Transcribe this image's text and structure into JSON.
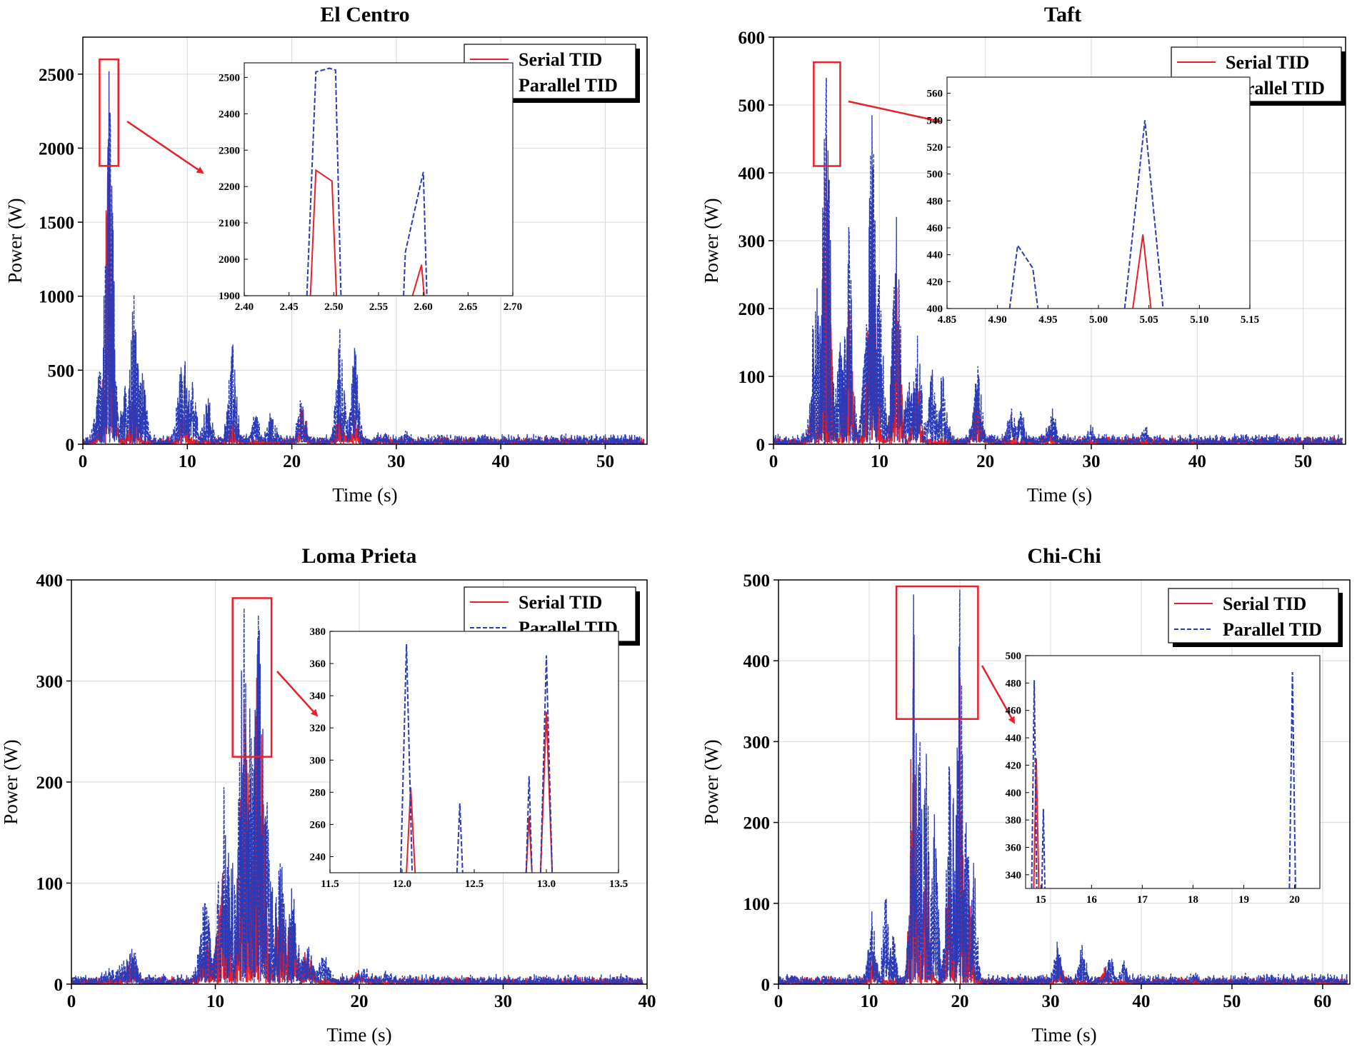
{
  "legend": {
    "serial": "Serial TID",
    "parallel": "Parallel TID"
  },
  "colors": {
    "serial": "#e8202a",
    "parallel": "#2b3bb8",
    "highlight": "#e8202a"
  },
  "chart_data": [
    {
      "type": "line",
      "title": "El Centro",
      "xlabel": "Time (s)",
      "ylabel": "Power (W)",
      "xlim": [
        0,
        54
      ],
      "ylim": [
        0,
        2750
      ],
      "xticks": [
        0,
        10,
        20,
        30,
        40,
        50
      ],
      "yticks": [
        0,
        500,
        1000,
        1500,
        2000,
        2500
      ],
      "grid": true,
      "legend_position": "top-right",
      "series": [
        {
          "name": "Serial TID",
          "style": "solid",
          "peaks": [
            [
              1.6,
              120
            ],
            [
              2.5,
              2240
            ],
            [
              4.9,
              300
            ],
            [
              9.6,
              200
            ],
            [
              14.3,
              160
            ],
            [
              21.0,
              230
            ],
            [
              24.6,
              200
            ],
            [
              26.0,
              180
            ],
            [
              29,
              20
            ]
          ]
        },
        {
          "name": "Parallel TID",
          "style": "dashed",
          "peaks": [
            [
              1.6,
              490
            ],
            [
              2.5,
              2520
            ],
            [
              2.6,
              2240
            ],
            [
              4.0,
              380
            ],
            [
              4.9,
              1010
            ],
            [
              5.7,
              480
            ],
            [
              9.4,
              520
            ],
            [
              9.8,
              560
            ],
            [
              10.5,
              420
            ],
            [
              12.0,
              310
            ],
            [
              14.3,
              660
            ],
            [
              16.5,
              180
            ],
            [
              18,
              180
            ],
            [
              20.9,
              280
            ],
            [
              24.6,
              780
            ],
            [
              26.0,
              650
            ],
            [
              28.5,
              60
            ],
            [
              31,
              30
            ]
          ]
        }
      ],
      "zoom_box": {
        "x": [
          1.6,
          3.4
        ],
        "y": [
          1880,
          2600
        ]
      },
      "inset": {
        "xlim": [
          2.4,
          2.7
        ],
        "ylim": [
          1900,
          2540
        ],
        "xticks": [
          2.4,
          2.45,
          2.5,
          2.55,
          2.6,
          2.65,
          2.7
        ],
        "yticks": [
          1900,
          2000,
          2100,
          2200,
          2300,
          2400,
          2500
        ],
        "tick_decimals": 2,
        "serial": [
          [
            2.474,
            1900
          ],
          [
            2.48,
            2245
          ],
          [
            2.498,
            2215
          ],
          [
            2.503,
            1900
          ],
          null,
          [
            2.588,
            1900
          ],
          [
            2.598,
            1985
          ],
          [
            2.601,
            1900
          ]
        ],
        "parallel": [
          [
            2.47,
            1900
          ],
          [
            2.48,
            2515
          ],
          [
            2.495,
            2525
          ],
          [
            2.502,
            2520
          ],
          [
            2.508,
            1900
          ],
          null,
          [
            2.578,
            1900
          ],
          [
            2.58,
            2020
          ],
          [
            2.59,
            2130
          ],
          [
            2.6,
            2240
          ],
          [
            2.604,
            1900
          ]
        ]
      }
    },
    {
      "type": "line",
      "title": "Taft",
      "xlabel": "Time (s)",
      "ylabel": "Power (W)",
      "xlim": [
        0,
        54
      ],
      "ylim": [
        0,
        600
      ],
      "xticks": [
        0,
        10,
        20,
        30,
        40,
        50
      ],
      "yticks": [
        0,
        100,
        200,
        300,
        400,
        500,
        600
      ],
      "grid": true,
      "legend_position": "top-right",
      "series": [
        {
          "name": "Serial TID",
          "style": "solid",
          "peaks": [
            [
              3.8,
              60
            ],
            [
              5.0,
              455
            ],
            [
              7.1,
              200
            ],
            [
              9.3,
              350
            ],
            [
              11.6,
              250
            ],
            [
              13.5,
              90
            ],
            [
              19.3,
              60
            ],
            [
              26,
              20
            ]
          ]
        },
        {
          "name": "Parallel TID",
          "style": "dashed",
          "peaks": [
            [
              3.7,
              175
            ],
            [
              4.1,
              230
            ],
            [
              4.8,
              450
            ],
            [
              5.0,
              540
            ],
            [
              6.3,
              150
            ],
            [
              7.1,
              320
            ],
            [
              8.8,
              175
            ],
            [
              9.3,
              485
            ],
            [
              10.0,
              250
            ],
            [
              11.6,
              335
            ],
            [
              12.8,
              90
            ],
            [
              13.6,
              160
            ],
            [
              15,
              110
            ],
            [
              16,
              100
            ],
            [
              19.3,
              115
            ],
            [
              22.5,
              50
            ],
            [
              23.4,
              45
            ],
            [
              26.3,
              40
            ],
            [
              30,
              20
            ],
            [
              35,
              15
            ]
          ]
        }
      ],
      "zoom_box": {
        "x": [
          3.8,
          6.3
        ],
        "y": [
          410,
          563
        ]
      },
      "inset": {
        "xlim": [
          4.85,
          5.15
        ],
        "ylim": [
          400,
          572
        ],
        "xticks": [
          4.85,
          4.9,
          4.95,
          5.0,
          5.05,
          5.1,
          5.15
        ],
        "yticks": [
          400,
          420,
          440,
          460,
          480,
          500,
          520,
          540,
          560
        ],
        "tick_decimals": 2,
        "serial": [
          [
            5.034,
            400
          ],
          [
            5.044,
            455
          ],
          [
            5.052,
            400
          ]
        ],
        "parallel": [
          [
            4.912,
            400
          ],
          [
            4.92,
            447
          ],
          [
            4.935,
            430
          ],
          [
            4.94,
            400
          ],
          null,
          [
            5.026,
            400
          ],
          [
            5.046,
            540
          ],
          [
            5.064,
            400
          ]
        ]
      }
    },
    {
      "type": "line",
      "title": "Loma Prieta",
      "xlabel": "Time (s)",
      "ylabel": "Power (W)",
      "xlim": [
        0,
        40
      ],
      "ylim": [
        0,
        400
      ],
      "xticks": [
        0,
        10,
        20,
        30,
        40
      ],
      "yticks": [
        0,
        100,
        200,
        300,
        400
      ],
      "grid": true,
      "legend_position": "top-right",
      "series": [
        {
          "name": "Serial TID",
          "style": "solid",
          "peaks": [
            [
              4.2,
              25
            ],
            [
              9.4,
              40
            ],
            [
              10.5,
              110
            ],
            [
              12.0,
              280
            ],
            [
              13.0,
              330
            ],
            [
              14.5,
              80
            ],
            [
              15.3,
              60
            ],
            [
              16.4,
              30
            ],
            [
              20,
              10
            ]
          ]
        },
        {
          "name": "Parallel TID",
          "style": "dashed",
          "peaks": [
            [
              2.6,
              10
            ],
            [
              3.5,
              20
            ],
            [
              4.2,
              35
            ],
            [
              9.3,
              80
            ],
            [
              10.6,
              195
            ],
            [
              11.2,
              120
            ],
            [
              12.0,
              372
            ],
            [
              12.4,
              273
            ],
            [
              13.0,
              365
            ],
            [
              13.6,
              180
            ],
            [
              14.5,
              120
            ],
            [
              15.3,
              95
            ],
            [
              16.4,
              35
            ],
            [
              17.5,
              25
            ],
            [
              20.3,
              15
            ],
            [
              22,
              8
            ]
          ]
        }
      ],
      "zoom_box": {
        "x": [
          11.2,
          13.9
        ],
        "y": [
          225,
          382
        ]
      },
      "inset": {
        "xlim": [
          11.5,
          13.5
        ],
        "ylim": [
          230,
          380
        ],
        "xticks": [
          11.5,
          12.0,
          12.5,
          13.0,
          13.5
        ],
        "yticks": [
          240,
          260,
          280,
          300,
          320,
          340,
          360,
          380
        ],
        "tick_decimals": 1,
        "serial": [
          [
            12.03,
            230
          ],
          [
            12.06,
            283
          ],
          [
            12.09,
            230
          ],
          null,
          [
            12.86,
            230
          ],
          [
            12.88,
            265
          ],
          [
            12.9,
            230
          ],
          null,
          [
            12.96,
            230
          ],
          [
            13.0,
            330
          ],
          [
            13.04,
            230
          ]
        ],
        "parallel": [
          [
            11.99,
            230
          ],
          [
            12.03,
            372
          ],
          [
            12.07,
            230
          ],
          null,
          [
            12.38,
            230
          ],
          [
            12.4,
            273
          ],
          [
            12.42,
            230
          ],
          null,
          [
            12.86,
            230
          ],
          [
            12.88,
            290
          ],
          [
            12.9,
            230
          ],
          null,
          [
            12.96,
            230
          ],
          [
            13.0,
            365
          ],
          [
            13.04,
            230
          ]
        ]
      }
    },
    {
      "type": "line",
      "title": "Chi-Chi",
      "xlabel": "Time (s)",
      "ylabel": "Power (W)",
      "xlim": [
        0,
        63
      ],
      "ylim": [
        0,
        500
      ],
      "xticks": [
        0,
        10,
        20,
        30,
        40,
        50,
        60
      ],
      "yticks": [
        0,
        100,
        200,
        300,
        400,
        500
      ],
      "grid": true,
      "legend_position": "top-right",
      "series": [
        {
          "name": "Serial TID",
          "style": "solid",
          "peaks": [
            [
              10.5,
              40
            ],
            [
              14.9,
              425
            ],
            [
              16.3,
              160
            ],
            [
              18.8,
              120
            ],
            [
              20.0,
              380
            ],
            [
              21.0,
              130
            ],
            [
              31,
              25
            ],
            [
              36,
              20
            ]
          ]
        },
        {
          "name": "Parallel TID",
          "style": "dashed",
          "peaks": [
            [
              10.3,
              90
            ],
            [
              11.8,
              105
            ],
            [
              12.6,
              60
            ],
            [
              14.9,
              482
            ],
            [
              15.6,
              300
            ],
            [
              16.3,
              285
            ],
            [
              17.2,
              210
            ],
            [
              18.8,
              270
            ],
            [
              19.3,
              230
            ],
            [
              20.0,
              488
            ],
            [
              20.7,
              200
            ],
            [
              21.5,
              150
            ],
            [
              30.8,
              45
            ],
            [
              33.5,
              45
            ],
            [
              36.5,
              30
            ],
            [
              38,
              25
            ],
            [
              46,
              10
            ],
            [
              60,
              8
            ]
          ]
        }
      ],
      "zoom_box": {
        "x": [
          13.0,
          22.0
        ],
        "y": [
          328,
          492
        ]
      },
      "inset": {
        "xlim": [
          14.7,
          20.5
        ],
        "ylim": [
          330,
          500
        ],
        "xticks": [
          15,
          16,
          17,
          18,
          19,
          20
        ],
        "yticks": [
          340,
          360,
          380,
          400,
          420,
          440,
          460,
          480,
          500
        ],
        "tick_decimals": 0,
        "serial": [
          [
            14.86,
            330
          ],
          [
            14.91,
            425
          ],
          [
            14.96,
            330
          ]
        ],
        "parallel": [
          [
            14.82,
            330
          ],
          [
            14.87,
            482
          ],
          [
            14.92,
            330
          ],
          null,
          [
            15.02,
            330
          ],
          [
            15.05,
            388
          ],
          [
            15.08,
            330
          ],
          null,
          [
            19.9,
            330
          ],
          [
            19.96,
            488
          ],
          [
            20.02,
            330
          ]
        ]
      }
    }
  ]
}
